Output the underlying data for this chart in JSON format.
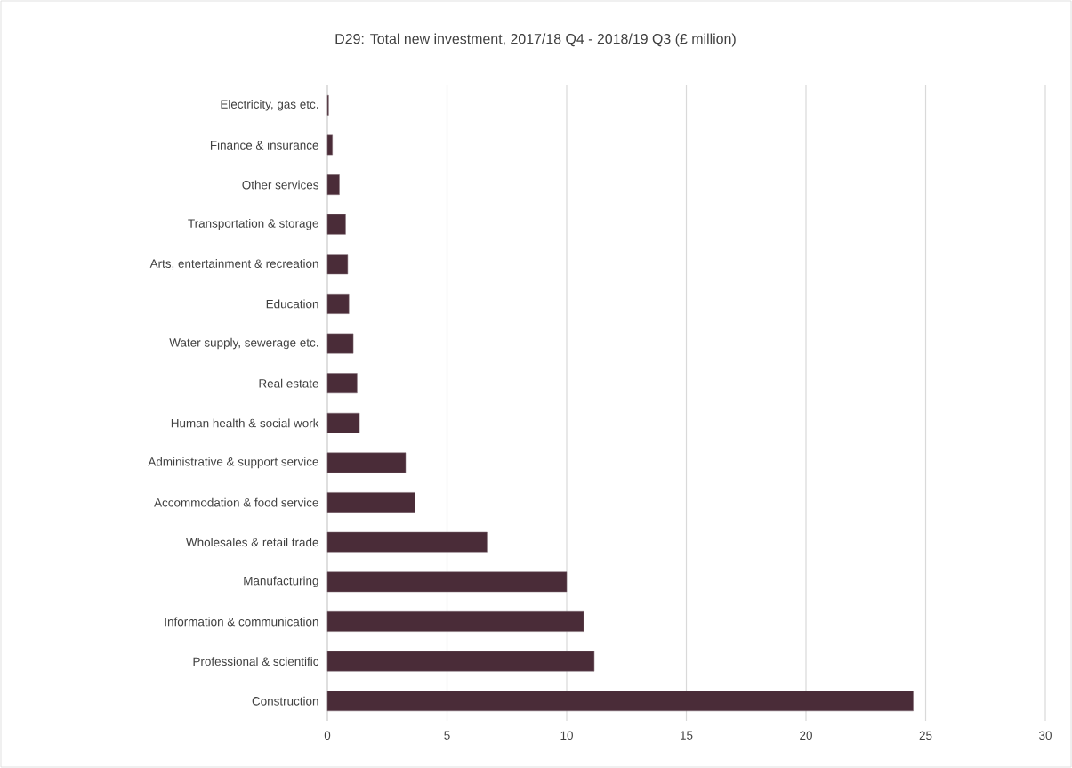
{
  "chart_data": {
    "type": "bar",
    "orientation": "horizontal",
    "title": "D29: Total new investment, 2017/18 Q4 - 2018/19 Q3 (£ million)",
    "categories": [
      "Electricity, gas etc.",
      "Finance & insurance",
      "Other services",
      "Transportation & storage",
      "Arts, entertainment & recreation",
      "Education",
      "Water supply, sewerage etc.",
      "Real estate",
      "Human health & social work",
      "Administrative & support service",
      "Accommodation & food service",
      "Wholesales & retail trade",
      "Manufacturing",
      "Information & communication",
      "Professional & scientific",
      "Construction"
    ],
    "values": [
      0.05,
      0.21,
      0.5,
      0.76,
      0.85,
      0.9,
      1.08,
      1.24,
      1.34,
      3.27,
      3.66,
      6.67,
      10.0,
      10.71,
      11.15,
      24.48
    ],
    "color": "#4a2c38",
    "xlim": [
      0,
      30
    ],
    "xticks": [
      0,
      5,
      10,
      15,
      20,
      25,
      30
    ],
    "grid": "x"
  }
}
